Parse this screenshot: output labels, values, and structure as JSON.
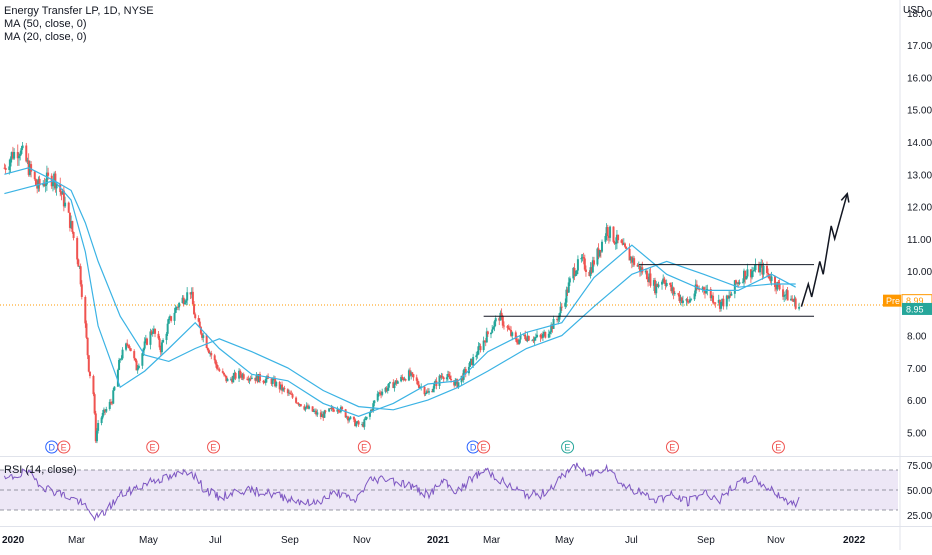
{
  "header": {
    "symbol_title": "Energy Transfer LP, 1D, NYSE",
    "ma50_label": "MA (50, close, 0)",
    "ma20_label": "MA (20, close, 0)",
    "rsi_label": "RSI (14, close)",
    "currency": "USD"
  },
  "colors": {
    "candle_up": "#26a69a",
    "candle_down": "#ef5350",
    "ma": "#3bb3e4",
    "rsi_line": "#7e57c2",
    "rsi_band": "#ede7f6",
    "pre_badge": "#ff9800",
    "price_badge": "#26a69a",
    "price_line": "#ff9800"
  },
  "chart_data": [
    {
      "type": "candlestick",
      "title": "Energy Transfer LP, 1D, NYSE",
      "x_tick_labels": [
        "2020",
        "Mar",
        "May",
        "Jul",
        "Sep",
        "Nov",
        "2021",
        "Mar",
        "May",
        "Jul",
        "Sep",
        "Nov",
        "2022"
      ],
      "y_tick_labels": [
        "5.00",
        "6.00",
        "7.00",
        "8.00",
        "9.00",
        "10.00",
        "11.00",
        "12.00",
        "13.00",
        "14.00",
        "15.00",
        "16.00",
        "17.00",
        "18.00"
      ],
      "ylim": [
        4.3,
        18.4
      ],
      "close_path": [
        [
          "2020-01-02",
          13.2
        ],
        [
          "2020-01-08",
          13.6
        ],
        [
          "2020-01-15",
          13.8
        ],
        [
          "2020-01-22",
          13.2
        ],
        [
          "2020-01-29",
          12.6
        ],
        [
          "2020-02-05",
          12.8
        ],
        [
          "2020-02-12",
          12.9
        ],
        [
          "2020-02-19",
          12.3
        ],
        [
          "2020-02-26",
          11.4
        ],
        [
          "2020-03-04",
          10.1
        ],
        [
          "2020-03-09",
          8.3
        ],
        [
          "2020-03-12",
          7.0
        ],
        [
          "2020-03-16",
          6.2
        ],
        [
          "2020-03-18",
          4.8
        ],
        [
          "2020-03-20",
          5.3
        ],
        [
          "2020-03-25",
          5.6
        ],
        [
          "2020-04-01",
          6.0
        ],
        [
          "2020-04-08",
          7.3
        ],
        [
          "2020-04-15",
          7.8
        ],
        [
          "2020-04-22",
          7.0
        ],
        [
          "2020-04-29",
          7.7
        ],
        [
          "2020-05-06",
          8.2
        ],
        [
          "2020-05-13",
          7.6
        ],
        [
          "2020-05-20",
          8.4
        ],
        [
          "2020-05-27",
          8.9
        ],
        [
          "2020-06-03",
          9.2
        ],
        [
          "2020-06-08",
          9.4
        ],
        [
          "2020-06-12",
          8.5
        ],
        [
          "2020-06-19",
          8.0
        ],
        [
          "2020-06-26",
          7.4
        ],
        [
          "2020-07-03",
          6.9
        ],
        [
          "2020-07-10",
          6.6
        ],
        [
          "2020-07-20",
          6.8
        ],
        [
          "2020-08-03",
          6.7
        ],
        [
          "2020-08-17",
          6.6
        ],
        [
          "2020-08-31",
          6.2
        ],
        [
          "2020-09-14",
          5.8
        ],
        [
          "2020-09-28",
          5.5
        ],
        [
          "2020-10-12",
          5.8
        ],
        [
          "2020-10-26",
          5.3
        ],
        [
          "2020-11-02",
          5.2
        ],
        [
          "2020-11-09",
          5.6
        ],
        [
          "2020-11-16",
          6.2
        ],
        [
          "2020-11-30",
          6.5
        ],
        [
          "2020-12-14",
          6.8
        ],
        [
          "2020-12-31",
          6.2
        ],
        [
          "2021-01-14",
          6.8
        ],
        [
          "2021-01-28",
          6.5
        ],
        [
          "2021-02-11",
          7.2
        ],
        [
          "2021-02-25",
          8.0
        ],
        [
          "2021-03-08",
          8.6
        ],
        [
          "2021-03-15",
          8.2
        ],
        [
          "2021-03-22",
          7.8
        ],
        [
          "2021-03-29",
          8.0
        ],
        [
          "2021-04-12",
          7.9
        ],
        [
          "2021-04-26",
          8.5
        ],
        [
          "2021-05-03",
          9.2
        ],
        [
          "2021-05-10",
          10.0
        ],
        [
          "2021-05-17",
          10.3
        ],
        [
          "2021-05-24",
          10.0
        ],
        [
          "2021-06-01",
          10.6
        ],
        [
          "2021-06-08",
          11.3
        ],
        [
          "2021-06-15",
          11.0
        ],
        [
          "2021-06-22",
          10.7
        ],
        [
          "2021-06-29",
          10.4
        ],
        [
          "2021-07-06",
          10.1
        ],
        [
          "2021-07-13",
          9.9
        ],
        [
          "2021-07-20",
          9.5
        ],
        [
          "2021-07-27",
          9.8
        ],
        [
          "2021-08-03",
          9.4
        ],
        [
          "2021-08-10",
          9.2
        ],
        [
          "2021-08-17",
          9.0
        ],
        [
          "2021-08-24",
          9.4
        ],
        [
          "2021-08-31",
          9.5
        ],
        [
          "2021-09-07",
          9.2
        ],
        [
          "2021-09-14",
          9.0
        ],
        [
          "2021-09-21",
          9.1
        ],
        [
          "2021-09-28",
          9.6
        ],
        [
          "2021-10-05",
          9.9
        ],
        [
          "2021-10-12",
          10.0
        ],
        [
          "2021-10-19",
          10.1
        ],
        [
          "2021-10-26",
          9.9
        ],
        [
          "2021-11-02",
          9.6
        ],
        [
          "2021-11-09",
          9.3
        ],
        [
          "2021-11-16",
          9.1
        ],
        [
          "2021-11-22",
          8.9
        ]
      ],
      "ma50_path": [
        [
          "2020-01-02",
          12.4
        ],
        [
          "2020-01-22",
          12.6
        ],
        [
          "2020-02-12",
          12.8
        ],
        [
          "2020-02-26",
          12.5
        ],
        [
          "2020-03-09",
          11.5
        ],
        [
          "2020-03-20",
          10.3
        ],
        [
          "2020-04-08",
          8.6
        ],
        [
          "2020-04-29",
          7.4
        ],
        [
          "2020-05-20",
          7.2
        ],
        [
          "2020-06-12",
          7.6
        ],
        [
          "2020-07-03",
          7.9
        ],
        [
          "2020-07-31",
          7.5
        ],
        [
          "2020-08-31",
          7.0
        ],
        [
          "2020-09-30",
          6.3
        ],
        [
          "2020-10-30",
          5.8
        ],
        [
          "2020-11-30",
          5.7
        ],
        [
          "2020-12-31",
          6.0
        ],
        [
          "2021-01-29",
          6.4
        ],
        [
          "2021-02-26",
          6.9
        ],
        [
          "2021-03-31",
          7.6
        ],
        [
          "2021-04-30",
          8.0
        ],
        [
          "2021-05-28",
          8.9
        ],
        [
          "2021-06-30",
          9.9
        ],
        [
          "2021-07-30",
          10.3
        ],
        [
          "2021-08-31",
          9.9
        ],
        [
          "2021-09-30",
          9.5
        ],
        [
          "2021-10-29",
          9.6
        ],
        [
          "2021-11-19",
          9.6
        ]
      ],
      "ma20_path": [
        [
          "2020-01-02",
          13.0
        ],
        [
          "2020-01-22",
          13.2
        ],
        [
          "2020-02-12",
          12.8
        ],
        [
          "2020-02-26",
          12.2
        ],
        [
          "2020-03-09",
          10.6
        ],
        [
          "2020-03-20",
          8.3
        ],
        [
          "2020-04-08",
          6.4
        ],
        [
          "2020-04-29",
          6.9
        ],
        [
          "2020-05-20",
          7.6
        ],
        [
          "2020-06-12",
          8.4
        ],
        [
          "2020-07-03",
          7.6
        ],
        [
          "2020-07-31",
          6.8
        ],
        [
          "2020-08-31",
          6.6
        ],
        [
          "2020-09-30",
          5.9
        ],
        [
          "2020-10-30",
          5.5
        ],
        [
          "2020-11-30",
          5.9
        ],
        [
          "2020-12-31",
          6.5
        ],
        [
          "2021-01-29",
          6.6
        ],
        [
          "2021-02-26",
          7.5
        ],
        [
          "2021-03-31",
          8.1
        ],
        [
          "2021-04-30",
          8.4
        ],
        [
          "2021-05-28",
          9.8
        ],
        [
          "2021-06-30",
          10.8
        ],
        [
          "2021-07-30",
          9.9
        ],
        [
          "2021-08-31",
          9.4
        ],
        [
          "2021-09-30",
          9.4
        ],
        [
          "2021-10-29",
          9.9
        ],
        [
          "2021-11-19",
          9.5
        ]
      ],
      "channel_upper": {
        "from": [
          "2021-07-06",
          10.2
        ],
        "to": [
          "2021-12-05",
          10.2
        ]
      },
      "channel_lower": {
        "from": [
          "2021-02-22",
          8.6
        ],
        "to": [
          "2021-12-05",
          8.6
        ]
      },
      "projection_path": [
        [
          "2021-11-24",
          8.9
        ],
        [
          "2021-11-30",
          9.6
        ],
        [
          "2021-12-03",
          9.2
        ],
        [
          "2021-12-10",
          10.3
        ],
        [
          "2021-12-13",
          9.9
        ],
        [
          "2021-12-20",
          11.4
        ],
        [
          "2021-12-23",
          11.0
        ],
        [
          "2022-01-03",
          12.4
        ]
      ],
      "event_markers": [
        {
          "date": "2020-02-10",
          "label": "D"
        },
        {
          "date": "2020-02-20",
          "label": "E"
        },
        {
          "date": "2020-05-06",
          "label": "E"
        },
        {
          "date": "2020-06-28",
          "label": "E"
        },
        {
          "date": "2020-11-04",
          "label": "E"
        },
        {
          "date": "2021-02-12",
          "label": "D"
        },
        {
          "date": "2021-02-22",
          "label": "E"
        },
        {
          "date": "2021-05-05",
          "label": "E"
        },
        {
          "date": "2021-08-04",
          "label": "E"
        },
        {
          "date": "2021-11-04",
          "label": "E"
        }
      ],
      "price_label_pre": {
        "label": "Pre",
        "value": 8.99
      },
      "price_label_last": {
        "value": 8.95
      }
    },
    {
      "type": "line",
      "title": "RSI (14, close)",
      "y_tick_labels": [
        "25.00",
        "50.00",
        "75.00"
      ],
      "ylim": [
        18,
        82
      ],
      "band": [
        30,
        70
      ],
      "values_path": [
        [
          "2020-01-02",
          60
        ],
        [
          "2020-01-20",
          68
        ],
        [
          "2020-02-05",
          52
        ],
        [
          "2020-02-20",
          45
        ],
        [
          "2020-03-05",
          38
        ],
        [
          "2020-03-12",
          28
        ],
        [
          "2020-03-18",
          22
        ],
        [
          "2020-03-25",
          27
        ],
        [
          "2020-04-08",
          45
        ],
        [
          "2020-04-22",
          52
        ],
        [
          "2020-05-06",
          60
        ],
        [
          "2020-05-20",
          62
        ],
        [
          "2020-06-08",
          70
        ],
        [
          "2020-06-19",
          52
        ],
        [
          "2020-07-03",
          42
        ],
        [
          "2020-07-20",
          50
        ],
        [
          "2020-08-10",
          48
        ],
        [
          "2020-08-31",
          42
        ],
        [
          "2020-09-21",
          36
        ],
        [
          "2020-10-12",
          48
        ],
        [
          "2020-10-26",
          38
        ],
        [
          "2020-11-09",
          60
        ],
        [
          "2020-11-23",
          62
        ],
        [
          "2020-12-14",
          55
        ],
        [
          "2020-12-31",
          45
        ],
        [
          "2021-01-14",
          58
        ],
        [
          "2021-01-28",
          48
        ],
        [
          "2021-02-11",
          62
        ],
        [
          "2021-02-25",
          70
        ],
        [
          "2021-03-15",
          55
        ],
        [
          "2021-03-29",
          46
        ],
        [
          "2021-04-12",
          45
        ],
        [
          "2021-04-26",
          58
        ],
        [
          "2021-05-10",
          75
        ],
        [
          "2021-05-24",
          65
        ],
        [
          "2021-06-08",
          74
        ],
        [
          "2021-06-22",
          55
        ],
        [
          "2021-07-06",
          48
        ],
        [
          "2021-07-20",
          40
        ],
        [
          "2021-08-03",
          45
        ],
        [
          "2021-08-17",
          38
        ],
        [
          "2021-08-31",
          48
        ],
        [
          "2021-09-14",
          40
        ],
        [
          "2021-09-28",
          55
        ],
        [
          "2021-10-12",
          62
        ],
        [
          "2021-10-26",
          52
        ],
        [
          "2021-11-09",
          42
        ],
        [
          "2021-11-16",
          35
        ],
        [
          "2021-11-22",
          40
        ]
      ]
    }
  ]
}
